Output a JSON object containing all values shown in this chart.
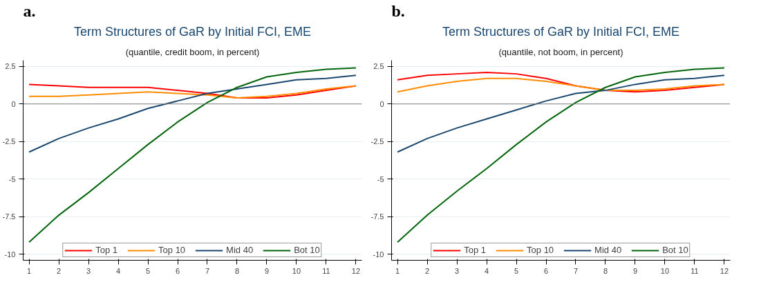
{
  "chart_data": [
    {
      "type": "line",
      "annotations": [
        "a."
      ],
      "title": "Term Structures of GaR by Initial FCI, EME",
      "subtitle": "(quantile, credit boom, in percent)",
      "x": [
        1,
        2,
        3,
        4,
        5,
        6,
        7,
        8,
        9,
        10,
        11,
        12
      ],
      "xlim": [
        0.8,
        12.2
      ],
      "xticks": [
        1,
        2,
        3,
        4,
        5,
        6,
        7,
        8,
        9,
        10,
        11,
        12
      ],
      "ylim": [
        -10.4,
        2.9
      ],
      "yticks": [
        2.5,
        0,
        -2.5,
        -5,
        -7.5,
        -10
      ],
      "grid": "y",
      "legend": "bottom",
      "ref_lines": [
        {
          "axis": "y",
          "value": 0,
          "color": "#808080"
        }
      ],
      "series": [
        {
          "name": "Top 1",
          "color": "#ff0000",
          "values": [
            1.3,
            1.2,
            1.1,
            1.1,
            1.1,
            0.9,
            0.7,
            0.4,
            0.4,
            0.6,
            0.9,
            1.2
          ]
        },
        {
          "name": "Top 10",
          "color": "#ff8c00",
          "values": [
            0.5,
            0.5,
            0.6,
            0.7,
            0.8,
            0.7,
            0.6,
            0.4,
            0.5,
            0.7,
            1.0,
            1.2
          ]
        },
        {
          "name": "Mid 40",
          "color": "#1a476f",
          "values": [
            -3.2,
            -2.3,
            -1.6,
            -1.0,
            -0.3,
            0.2,
            0.7,
            1.0,
            1.3,
            1.6,
            1.7,
            1.9
          ]
        },
        {
          "name": "Bot 10",
          "color": "#00640a",
          "values": [
            -9.2,
            -7.4,
            -5.9,
            -4.3,
            -2.7,
            -1.2,
            0.1,
            1.1,
            1.8,
            2.1,
            2.3,
            2.4
          ]
        }
      ]
    },
    {
      "type": "line",
      "annotations": [
        "b."
      ],
      "title": "Term Structures of GaR by Initial FCI, EME",
      "subtitle": "(quantile, not boom, in percent)",
      "x": [
        1,
        2,
        3,
        4,
        5,
        6,
        7,
        8,
        9,
        10,
        11,
        12
      ],
      "xlim": [
        0.8,
        12.2
      ],
      "xticks": [
        1,
        2,
        3,
        4,
        5,
        6,
        7,
        8,
        9,
        10,
        11,
        12
      ],
      "ylim": [
        -10.4,
        2.9
      ],
      "yticks": [
        2.5,
        0,
        -2.5,
        -5,
        -7.5,
        -10
      ],
      "grid": "y",
      "legend": "bottom",
      "ref_lines": [
        {
          "axis": "y",
          "value": 0,
          "color": "#808080"
        }
      ],
      "series": [
        {
          "name": "Top 1",
          "color": "#ff0000",
          "values": [
            1.6,
            1.9,
            2.0,
            2.1,
            2.0,
            1.7,
            1.2,
            0.9,
            0.8,
            0.9,
            1.1,
            1.3
          ]
        },
        {
          "name": "Top 10",
          "color": "#ff8c00",
          "values": [
            0.8,
            1.2,
            1.5,
            1.7,
            1.7,
            1.5,
            1.2,
            0.9,
            0.9,
            1.0,
            1.2,
            1.3
          ]
        },
        {
          "name": "Mid 40",
          "color": "#1a476f",
          "values": [
            -3.2,
            -2.3,
            -1.6,
            -1.0,
            -0.4,
            0.2,
            0.7,
            0.9,
            1.3,
            1.6,
            1.7,
            1.9
          ]
        },
        {
          "name": "Bot 10",
          "color": "#00640a",
          "values": [
            -9.2,
            -7.4,
            -5.8,
            -4.3,
            -2.7,
            -1.2,
            0.1,
            1.1,
            1.8,
            2.1,
            2.3,
            2.4
          ]
        }
      ]
    }
  ]
}
